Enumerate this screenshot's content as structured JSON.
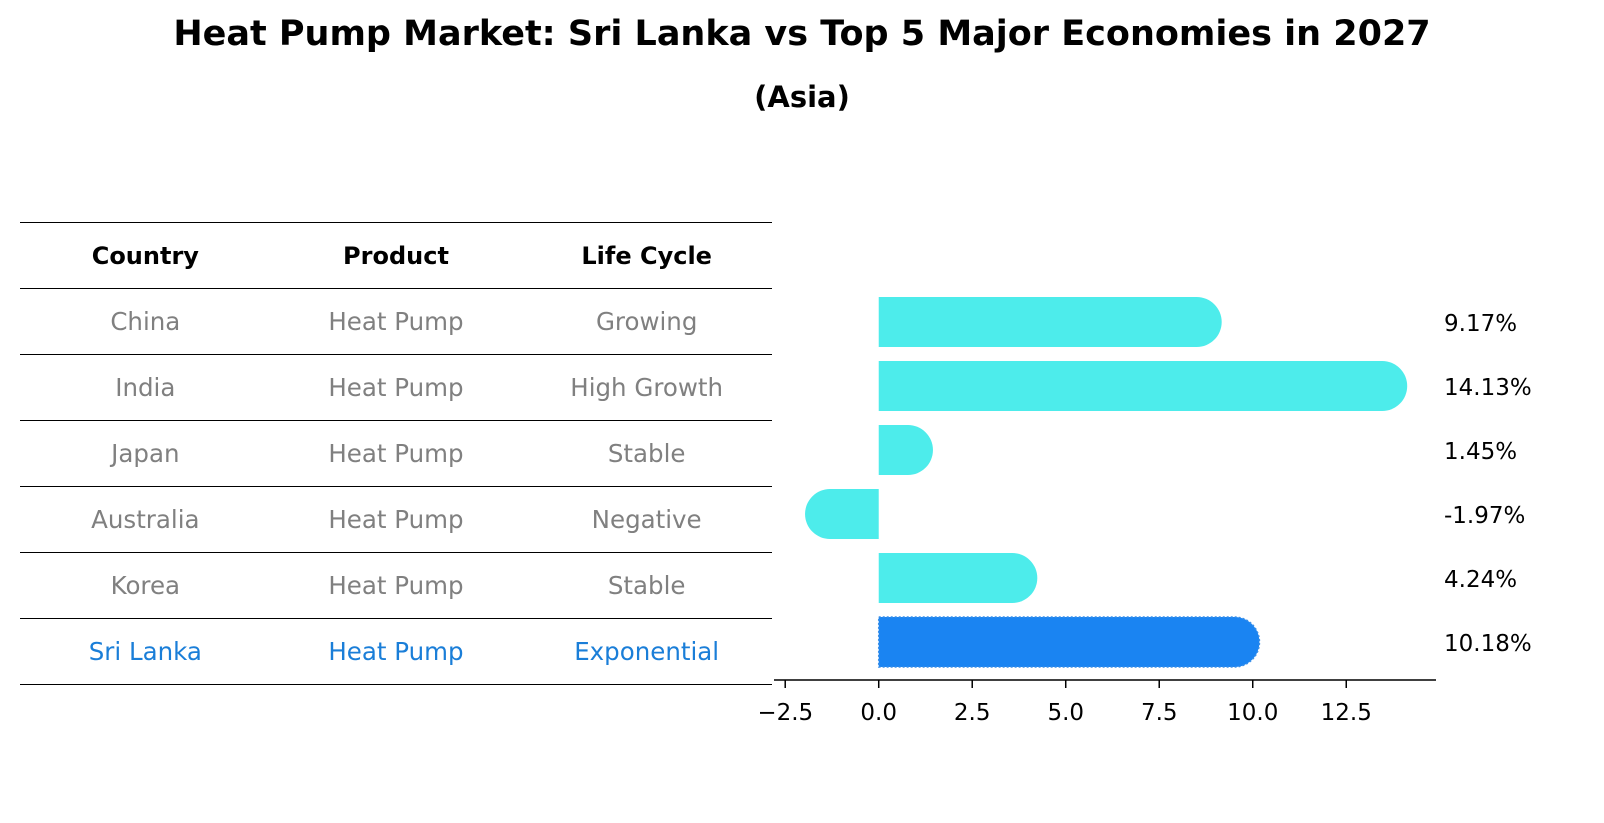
{
  "title": "Heat Pump Market: Sri Lanka vs Top 5 Major Economies in 2027",
  "subtitle": "(Asia)",
  "table": {
    "headers": [
      "Country",
      "Product",
      "Life Cycle"
    ],
    "rows": [
      {
        "country": "China",
        "product": "Heat Pump",
        "life_cycle": "Growing"
      },
      {
        "country": "India",
        "product": "Heat Pump",
        "life_cycle": "High Growth"
      },
      {
        "country": "Japan",
        "product": "Heat Pump",
        "life_cycle": "Stable"
      },
      {
        "country": "Australia",
        "product": "Heat Pump",
        "life_cycle": "Negative"
      },
      {
        "country": "Korea",
        "product": "Heat Pump",
        "life_cycle": "Stable"
      },
      {
        "country": "Sri Lanka",
        "product": "Heat Pump",
        "life_cycle": "Exponential"
      }
    ]
  },
  "colors": {
    "bar": "#4deceb",
    "highlight_bar": "#1a84f2",
    "highlight_text": "#1a7ed8",
    "muted_text": "#808080"
  },
  "chart_data": {
    "type": "bar",
    "orientation": "horizontal",
    "categories": [
      "China",
      "India",
      "Japan",
      "Australia",
      "Korea",
      "Sri Lanka"
    ],
    "values": [
      9.17,
      14.13,
      1.45,
      -1.97,
      4.24,
      10.18
    ],
    "value_labels": [
      "9.17%",
      "14.13%",
      "1.45%",
      "-1.97%",
      "4.24%",
      "10.18%"
    ],
    "highlight": "Sri Lanka",
    "xlim": [
      -2.8,
      14.9
    ],
    "xticks": [
      -2.5,
      0.0,
      2.5,
      5.0,
      7.5,
      10.0,
      12.5
    ],
    "xtick_labels": [
      "−2.5",
      "0.0",
      "2.5",
      "5.0",
      "7.5",
      "10.0",
      "12.5"
    ],
    "title": "",
    "xlabel": "",
    "ylabel": ""
  }
}
